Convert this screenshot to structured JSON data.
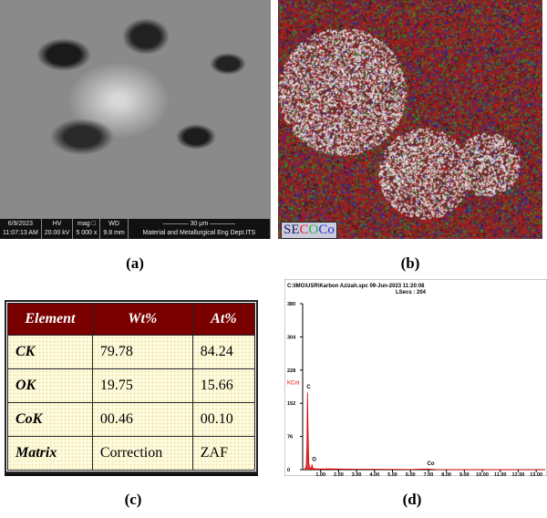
{
  "panels": {
    "a": "(a)",
    "b": "(b)",
    "c": "(c)",
    "d": "(d)"
  },
  "sem_bar": [
    {
      "top": "6/9/2023",
      "bottom": "11:07:13 AM"
    },
    {
      "top": "HV",
      "bottom": "20.00 kV"
    },
    {
      "top": "mag □",
      "bottom": "5 000 x"
    },
    {
      "top": "WD",
      "bottom": "9.8 mm"
    },
    {
      "top": "———— 30 µm ————",
      "bottom": "Material and Metallurgical Eng Dept.ITS"
    }
  ],
  "map_label": {
    "parts": [
      {
        "text": "SE",
        "color": "#1a1a60"
      },
      {
        "text": "C",
        "color": "#e0202a"
      },
      {
        "text": "O",
        "color": "#20b040"
      },
      {
        "text": "Co",
        "color": "#2030e0"
      }
    ]
  },
  "table": {
    "headers": [
      "Element",
      "Wt%",
      "At%"
    ],
    "rows": [
      [
        "CK",
        "79.78",
        "84.24"
      ],
      [
        "OK",
        "19.75",
        "15.66"
      ],
      [
        "CoK",
        "00.46",
        "00.10"
      ],
      [
        "Matrix",
        "Correction",
        "ZAF"
      ]
    ]
  },
  "chart_data": {
    "type": "line",
    "title": "C:\\IMG\\USR\\Karbon Azizah.spc  09-Jun-2023 11:20:08",
    "subtitle": "LSecs : 204",
    "xlabel": "Energy - keV",
    "ylabel": "KCnt",
    "xlim": [
      0,
      13.5
    ],
    "ylim": [
      0,
      380
    ],
    "xticks": [
      "1.00",
      "2.00",
      "3.00",
      "4.00",
      "5.00",
      "6.00",
      "7.00",
      "8.00",
      "9.00",
      "10.00",
      "11.00",
      "12.00",
      "13.00"
    ],
    "yticks": [
      "0",
      "76",
      "152",
      "228",
      "304",
      "380"
    ],
    "color": "#e00000",
    "peaks": [
      {
        "label": "C",
        "x": 0.27,
        "y": 177
      },
      {
        "label": "O",
        "x": 0.52,
        "y": 12
      },
      {
        "label": "Co",
        "x": 6.93,
        "y": 2
      }
    ],
    "x": [
      0.1,
      0.2,
      0.24,
      0.27,
      0.3,
      0.34,
      0.4,
      0.48,
      0.52,
      0.56,
      0.7,
      1.0,
      1.5,
      2.0,
      3.0,
      4.0,
      5.0,
      6.0,
      6.93,
      7.5,
      13.5
    ],
    "y": [
      0,
      8,
      60,
      177,
      90,
      15,
      4,
      3,
      12,
      3,
      2,
      1.5,
      2,
      1.5,
      1,
      1,
      0.8,
      0.6,
      1.5,
      0.3,
      0
    ]
  }
}
